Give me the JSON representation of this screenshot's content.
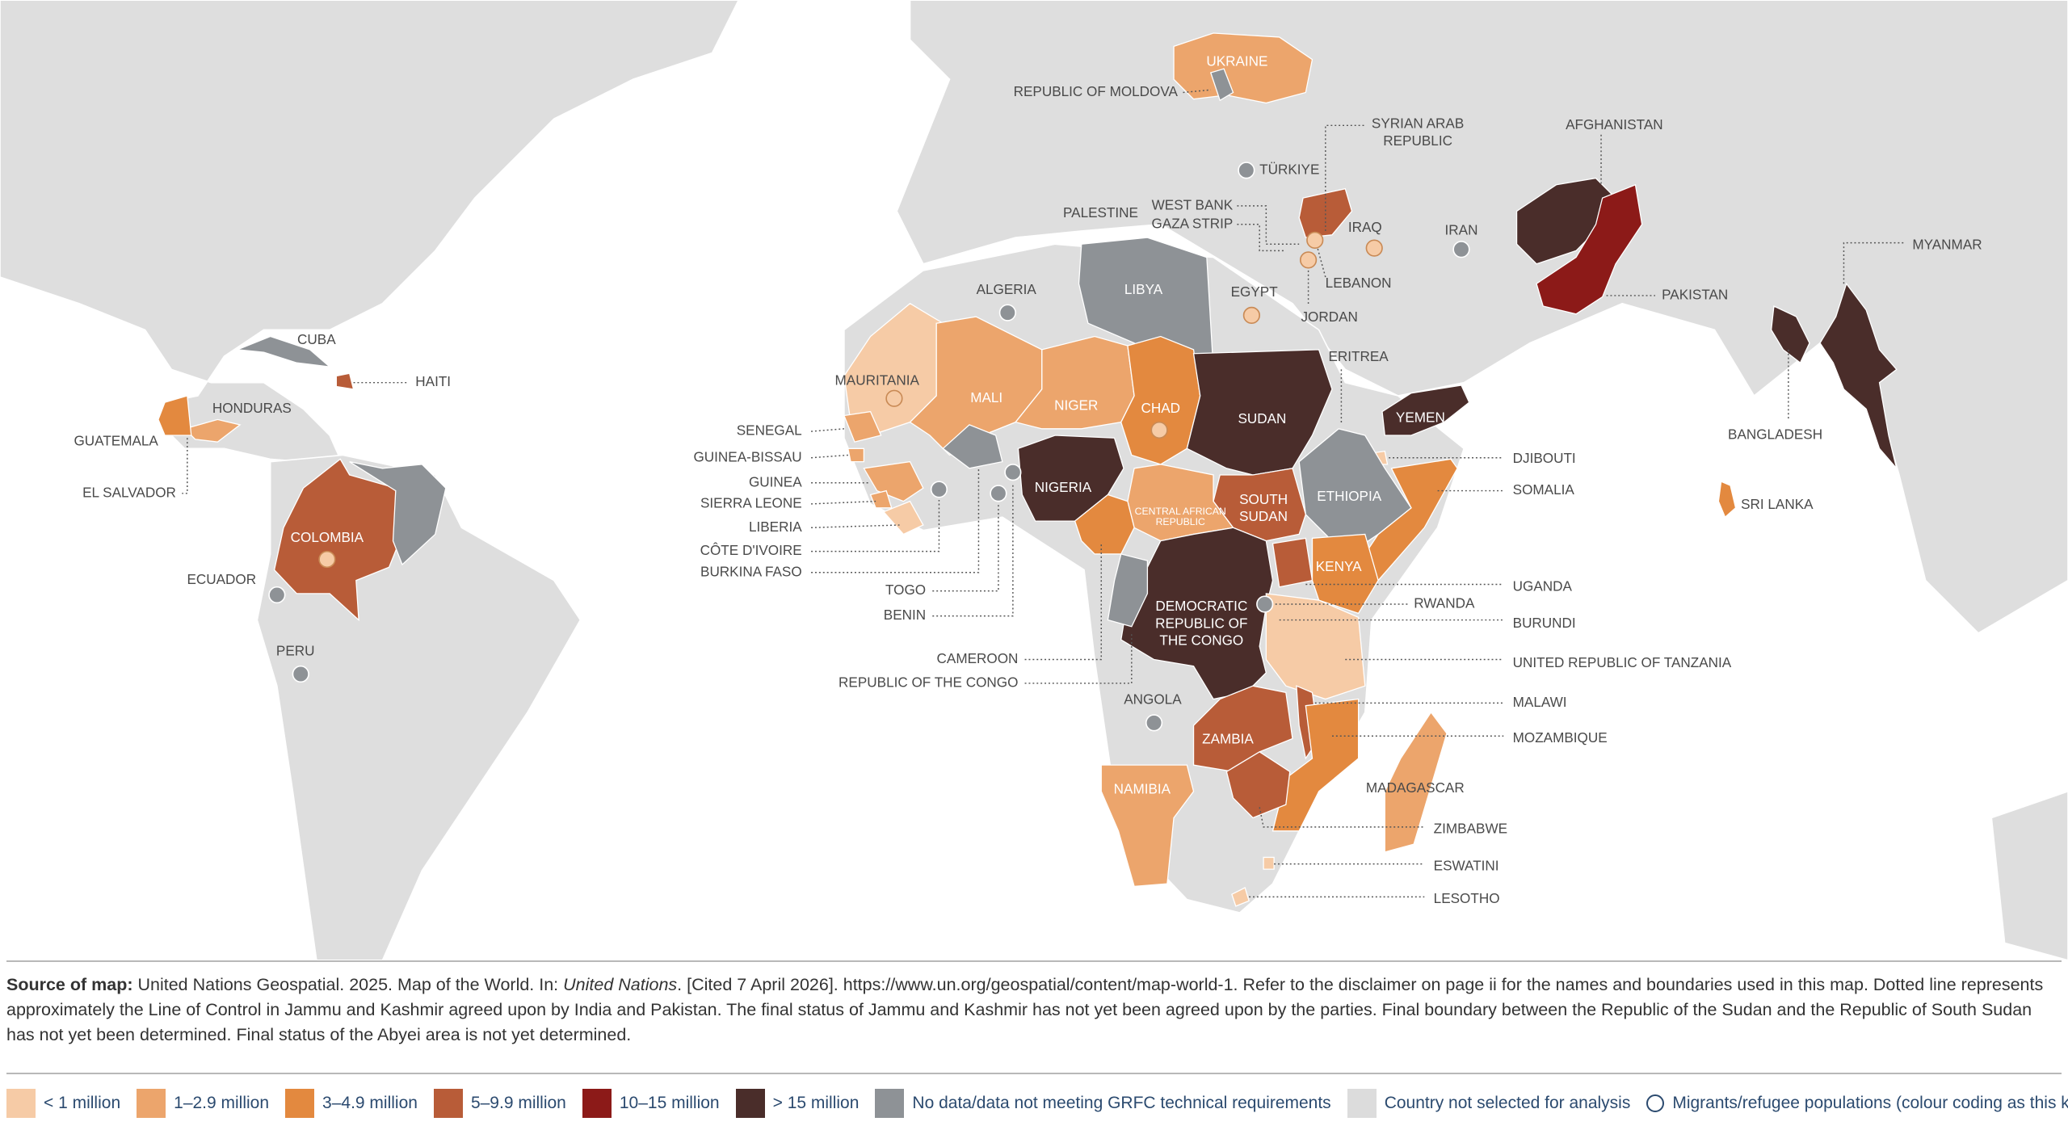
{
  "map": {
    "countries": [
      {
        "name": "UKRAINE",
        "class": 1
      },
      {
        "name": "REPUBLIC OF MOLDOVA",
        "class": 6
      },
      {
        "name": "TÜRKIYE",
        "class": 6
      },
      {
        "name": "SYRIAN ARAB REPUBLIC",
        "class": 3
      },
      {
        "name": "IRAQ",
        "class": 0
      },
      {
        "name": "IRAN",
        "class": 6
      },
      {
        "name": "AFGHANISTAN",
        "class": 5
      },
      {
        "name": "PAKISTAN",
        "class": 4
      },
      {
        "name": "MYANMAR",
        "class": 5
      },
      {
        "name": "BANGLADESH",
        "class": 5
      },
      {
        "name": "SRI LANKA",
        "class": 2
      },
      {
        "name": "LEBANON",
        "class": 0
      },
      {
        "name": "PALESTINE",
        "class": null
      },
      {
        "name": "WEST BANK",
        "class": null
      },
      {
        "name": "GAZA STRIP",
        "class": null
      },
      {
        "name": "JORDAN",
        "class": 0
      },
      {
        "name": "EGYPT",
        "class": 0
      },
      {
        "name": "LIBYA",
        "class": 6
      },
      {
        "name": "ALGERIA",
        "class": 6
      },
      {
        "name": "MAURITANIA",
        "class": 0,
        "circle_class": 0
      },
      {
        "name": "MALI",
        "class": 1
      },
      {
        "name": "NIGER",
        "class": 1
      },
      {
        "name": "CHAD",
        "class": 2,
        "circle_class": 0
      },
      {
        "name": "SUDAN",
        "class": 5
      },
      {
        "name": "YEMEN",
        "class": 5
      },
      {
        "name": "ERITREA",
        "class": null
      },
      {
        "name": "DJIBOUTI",
        "class": 0
      },
      {
        "name": "SOMALIA",
        "class": 2
      },
      {
        "name": "ETHIOPIA",
        "class": 6
      },
      {
        "name": "SOUTH SUDAN",
        "class": 3
      },
      {
        "name": "CENTRAL AFRICAN REPUBLIC",
        "class": 1
      },
      {
        "name": "NIGERIA",
        "class": 5
      },
      {
        "name": "CAMEROON",
        "class": 2
      },
      {
        "name": "SENEGAL",
        "class": 1
      },
      {
        "name": "GUINEA-BISSAU",
        "class": 1
      },
      {
        "name": "GUINEA",
        "class": 1
      },
      {
        "name": "SIERRA LEONE",
        "class": 1
      },
      {
        "name": "LIBERIA",
        "class": 0
      },
      {
        "name": "CÔTE D'IVOIRE",
        "class": 6
      },
      {
        "name": "BURKINA FASO",
        "class": 6
      },
      {
        "name": "TOGO",
        "class": 6
      },
      {
        "name": "BENIN",
        "class": 6
      },
      {
        "name": "DEMOCRATIC REPUBLIC OF THE CONGO",
        "class": 5
      },
      {
        "name": "REPUBLIC OF THE CONGO",
        "class": 6
      },
      {
        "name": "UGANDA",
        "class": 3
      },
      {
        "name": "KENYA",
        "class": 2
      },
      {
        "name": "RWANDA",
        "class": 6
      },
      {
        "name": "BURUNDI",
        "class": 0
      },
      {
        "name": "UNITED REPUBLIC OF TANZANIA",
        "class": 0
      },
      {
        "name": "ANGOLA",
        "class": 6
      },
      {
        "name": "ZAMBIA",
        "class": 3
      },
      {
        "name": "MALAWI",
        "class": 3
      },
      {
        "name": "MOZAMBIQUE",
        "class": 2
      },
      {
        "name": "NAMIBIA",
        "class": 1
      },
      {
        "name": "ZIMBABWE",
        "class": 3
      },
      {
        "name": "ESWATINI",
        "class": 0
      },
      {
        "name": "LESOTHO",
        "class": 0
      },
      {
        "name": "MADAGASCAR",
        "class": 1
      },
      {
        "name": "COLOMBIA",
        "class": 3,
        "circle_class": 0
      },
      {
        "name": null,
        "class": 6
      },
      {
        "name": "ECUADOR",
        "class": 6
      },
      {
        "name": "PERU",
        "class": 6
      },
      {
        "name": "CUBA",
        "class": 6
      },
      {
        "name": "HAITI",
        "class": 3
      },
      {
        "name": "HONDURAS",
        "class": 1
      },
      {
        "name": "GUATEMALA",
        "class": 2
      },
      {
        "name": "EL SALVADOR",
        "class": null
      }
    ],
    "source": {
      "label": "Source of map:",
      "parts": [
        "United Nations Geospatial. 2025. Map of the World. In:",
        "United Nations",
        ". [Cited 7 April 2026]. https://www.un.org/geospatial/content/map-world-1. Refer to the disclaimer on page ii for the names and boundaries used in this map. Dotted line represents approximately the Line of Control in Jammu and Kashmir agreed upon by India and Pakistan. The final status of Jammu and Kashmir has not yet been agreed upon by the parties. Final boundary between the Republic of the Sudan and the Republic of South Sudan has not yet been determined. Final status of the Abyei area is not yet determined."
      ]
    },
    "legend": {
      "items": [
        {
          "label": "< 1 million",
          "color": "#f6cba6"
        },
        {
          "label": "1–2.9 million",
          "color": "#eca56c"
        },
        {
          "label": "3–4.9 million",
          "color": "#e3893f"
        },
        {
          "label": "5–9.9 million",
          "color": "#b85c38"
        },
        {
          "label": "10–15 million",
          "color": "#8c1a18"
        },
        {
          "label": "> 15 million",
          "color": "#4a2d2a"
        },
        {
          "label": "No data/data not meeting GRFC technical requirements",
          "color": "#8e9296"
        },
        {
          "label": "Country not selected for analysis",
          "color": "#dcdcdc"
        },
        {
          "label": "Migrants/refugee populations (colour coding as this key)",
          "color": null
        }
      ]
    }
  }
}
